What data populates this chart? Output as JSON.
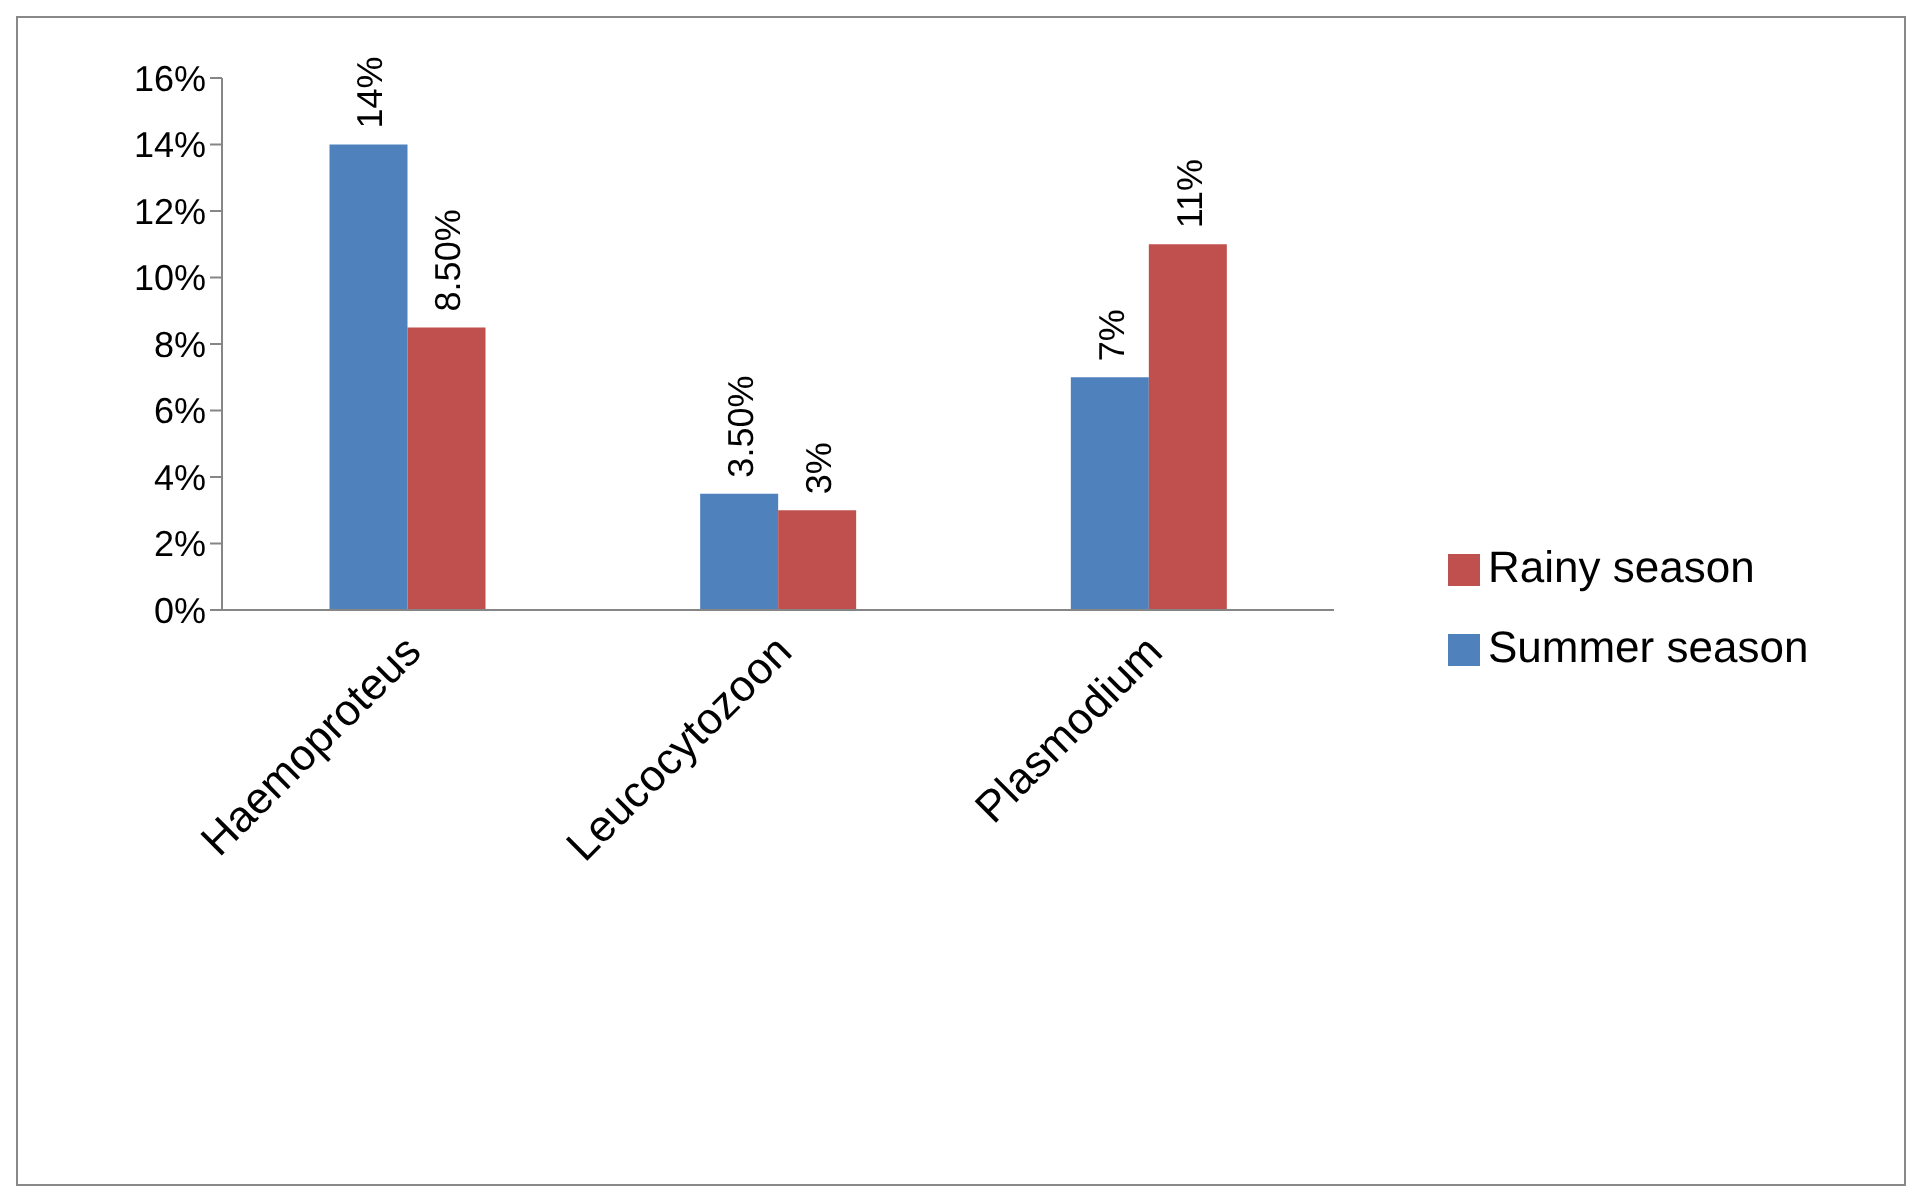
{
  "chart_data": {
    "type": "bar",
    "categories": [
      "Haemoproteus",
      "Leucocytozoon",
      "Plasmodium"
    ],
    "series": [
      {
        "name": "Summer season",
        "color": "#4f81bd",
        "values": [
          14,
          3.5,
          7
        ],
        "value_labels": [
          "14%",
          "3.50%",
          "7%"
        ]
      },
      {
        "name": "Rainy season",
        "color": "#c0504d",
        "values": [
          8.5,
          3,
          11
        ],
        "value_labels": [
          "8.50%",
          "3%",
          "11%"
        ]
      }
    ],
    "ylim": [
      0,
      16
    ],
    "yticks": [
      {
        "value": 0,
        "label": "0%"
      },
      {
        "value": 2,
        "label": "2%"
      },
      {
        "value": 4,
        "label": "4%"
      },
      {
        "value": 6,
        "label": "6%"
      },
      {
        "value": 8,
        "label": "8%"
      },
      {
        "value": 10,
        "label": "10%"
      },
      {
        "value": 12,
        "label": "12%"
      },
      {
        "value": 14,
        "label": "14%"
      },
      {
        "value": 16,
        "label": "16%"
      }
    ],
    "grid": false,
    "legend": "right"
  }
}
